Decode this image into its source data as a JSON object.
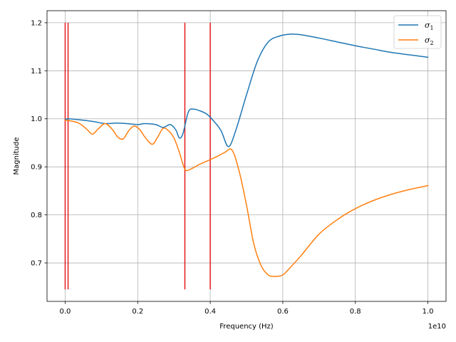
{
  "chart_data": {
    "type": "line",
    "xlabel": "Frequency (Hz)",
    "ylabel": "Magnitude",
    "x_offset_label": "1e10",
    "xlim": [
      -0.05,
      1.05
    ],
    "ylim": [
      0.62,
      1.225
    ],
    "x_scale_factor": 10000000000,
    "xticks": [
      0.0,
      0.2,
      0.4,
      0.6,
      0.8,
      1.0
    ],
    "xtick_labels": [
      "0.0",
      "0.2",
      "0.4",
      "0.6",
      "0.8",
      "1.0"
    ],
    "yticks": [
      0.7,
      0.8,
      0.9,
      1.0,
      1.1,
      1.2
    ],
    "ytick_labels": [
      "0.7",
      "0.8",
      "0.9",
      "1.0",
      "1.1",
      "1.2"
    ],
    "grid": true,
    "legend_position": "top-right",
    "series": [
      {
        "name": "σ1",
        "symbol": "σ",
        "subscript": "1",
        "color": "#1f77b4",
        "x": [
          0.0,
          0.01,
          0.05,
          0.08,
          0.11,
          0.14,
          0.17,
          0.2,
          0.22,
          0.25,
          0.27,
          0.29,
          0.305,
          0.315,
          0.325,
          0.34,
          0.355,
          0.37,
          0.39,
          0.41,
          0.43,
          0.45,
          0.47,
          0.5,
          0.53,
          0.56,
          0.59,
          0.62,
          0.65,
          0.7,
          0.75,
          0.8,
          0.85,
          0.9,
          0.95,
          1.0
        ],
        "y": [
          0.998,
          1.0,
          0.997,
          0.994,
          0.99,
          0.991,
          0.99,
          0.988,
          0.99,
          0.988,
          0.982,
          0.988,
          0.977,
          0.96,
          0.97,
          1.015,
          1.02,
          1.017,
          1.01,
          0.995,
          0.975,
          0.942,
          0.975,
          1.05,
          1.12,
          1.16,
          1.172,
          1.176,
          1.175,
          1.168,
          1.16,
          1.152,
          1.145,
          1.138,
          1.133,
          1.128
        ]
      },
      {
        "name": "σ2",
        "symbol": "σ",
        "subscript": "2",
        "color": "#ff7f0e",
        "x": [
          0.0,
          0.02,
          0.04,
          0.06,
          0.075,
          0.09,
          0.11,
          0.13,
          0.145,
          0.16,
          0.175,
          0.19,
          0.205,
          0.22,
          0.24,
          0.255,
          0.27,
          0.285,
          0.3,
          0.315,
          0.33,
          0.345,
          0.37,
          0.4,
          0.42,
          0.44,
          0.46,
          0.48,
          0.5,
          0.52,
          0.54,
          0.56,
          0.58,
          0.6,
          0.62,
          0.65,
          0.7,
          0.75,
          0.8,
          0.85,
          0.9,
          0.95,
          1.0
        ],
        "y": [
          0.997,
          0.995,
          0.99,
          0.978,
          0.968,
          0.978,
          0.99,
          0.978,
          0.962,
          0.958,
          0.975,
          0.985,
          0.978,
          0.962,
          0.947,
          0.962,
          0.98,
          0.975,
          0.96,
          0.93,
          0.895,
          0.895,
          0.905,
          0.915,
          0.922,
          0.93,
          0.935,
          0.89,
          0.82,
          0.74,
          0.695,
          0.675,
          0.672,
          0.675,
          0.69,
          0.715,
          0.76,
          0.79,
          0.813,
          0.83,
          0.843,
          0.853,
          0.861
        ]
      }
    ],
    "vlines": {
      "color": "#e41a1c",
      "x": [
        0.0,
        0.008,
        0.33,
        0.4
      ],
      "y_range": [
        0.645,
        1.2
      ]
    }
  }
}
